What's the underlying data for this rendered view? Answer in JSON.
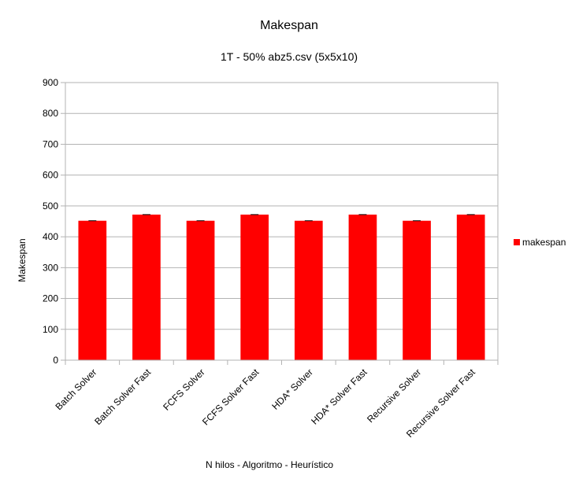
{
  "chart_data": {
    "type": "bar",
    "title": "Makespan",
    "subtitle": "1T - 50% abz5.csv (5x5x10)",
    "xlabel": "N hilos - Algoritmo - Heurístico",
    "ylabel": "Makespan",
    "ylim": [
      0,
      900
    ],
    "yticks": [
      0,
      100,
      200,
      300,
      400,
      500,
      600,
      700,
      800,
      900
    ],
    "categories": [
      "Batch Solver",
      "Batch Solver Fast",
      "FCFS Solver",
      "FCFS Solver Fast",
      "HDA* Solver",
      "HDA* Solver Fast",
      "Recursive Solver",
      "Recursive Solver Fast"
    ],
    "series": [
      {
        "name": "makespan",
        "color": "#ff0000",
        "values": [
          452,
          472,
          452,
          472,
          452,
          472,
          452,
          472
        ]
      }
    ],
    "error_bars": true,
    "grid": true,
    "legend_position": "right"
  }
}
